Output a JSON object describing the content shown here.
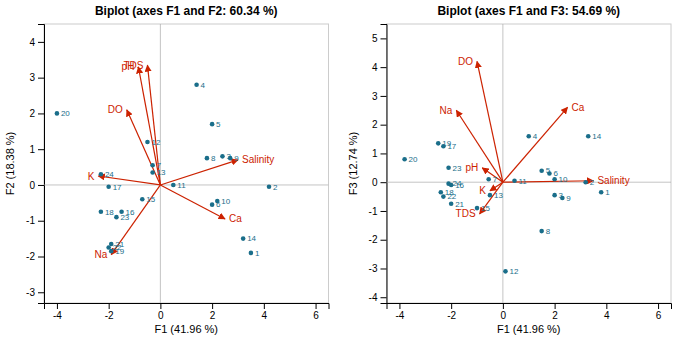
{
  "chart_data": [
    {
      "type": "scatter",
      "title": "Biplot (axes F1 and F2: 60.34 %)",
      "x_label": "F1 (41.96 %)",
      "y_label": "F2 (18.38 %)",
      "xlim": [
        -4.5,
        6.5
      ],
      "ylim": [
        -3.3,
        4.5
      ],
      "xticks": [
        -4,
        -2,
        0,
        2,
        4,
        6
      ],
      "yticks": [
        -3,
        -2,
        -1,
        0,
        1,
        2,
        3,
        4
      ],
      "points": {
        "color": "#1a6e8a",
        "labels": [
          "1",
          "2",
          "3",
          "4",
          "5",
          "6",
          "7",
          "8",
          "9",
          "10",
          "11",
          "12",
          "13",
          "14",
          "15",
          "16",
          "17",
          "18",
          "19",
          "20",
          "21",
          "22",
          "23",
          "24"
        ],
        "x": [
          3.5,
          4.2,
          2.4,
          1.4,
          2.0,
          2.0,
          -0.3,
          1.8,
          2.7,
          2.2,
          0.5,
          -0.5,
          -0.3,
          3.2,
          -0.7,
          -1.5,
          -2.0,
          -2.3,
          -1.9,
          -4.0,
          -1.9,
          -2.0,
          -1.7,
          -2.3
        ],
        "y": [
          -1.9,
          -0.05,
          0.8,
          2.8,
          1.7,
          -0.55,
          0.55,
          0.75,
          0.75,
          -0.45,
          0.0,
          1.2,
          0.35,
          -1.5,
          -0.4,
          -0.75,
          -0.05,
          -0.75,
          -1.85,
          2.0,
          -1.65,
          -1.75,
          -0.9,
          0.3
        ]
      },
      "arrows": {
        "color": "#cc2200",
        "labels": [
          "Salinity",
          "Ca",
          "DO",
          "Na",
          "pH",
          "TDS",
          "K"
        ],
        "x": [
          3.0,
          2.5,
          -1.3,
          -1.9,
          -0.85,
          -0.5,
          -2.4
        ],
        "y": [
          0.7,
          -0.95,
          2.1,
          -1.95,
          3.3,
          3.35,
          0.25
        ]
      }
    },
    {
      "type": "scatter",
      "title": "Biplot (axes F1 and F3: 54.69 %)",
      "x_label": "F1 (41.96 %)",
      "y_label": "F3 (12.74 %)",
      "xlim": [
        -4.5,
        6.5
      ],
      "ylim": [
        -4.2,
        5.5
      ],
      "xticks": [
        -4,
        -2,
        0,
        2,
        4,
        6
      ],
      "yticks": [
        -4,
        -3,
        -2,
        -1,
        0,
        1,
        2,
        3,
        4,
        5
      ],
      "points": {
        "color": "#1a6e8a",
        "labels": [
          "1",
          "2",
          "3",
          "4",
          "5",
          "6",
          "7",
          "8",
          "9",
          "10",
          "11",
          "12",
          "13",
          "14",
          "15",
          "16",
          "17",
          "18",
          "19",
          "20",
          "21",
          "22",
          "23",
          "24"
        ],
        "x": [
          3.8,
          3.2,
          2.0,
          1.0,
          1.5,
          1.8,
          -0.55,
          1.5,
          2.3,
          2.0,
          0.45,
          0.1,
          -0.5,
          3.3,
          -1.0,
          -2.0,
          -2.3,
          -2.4,
          -2.5,
          -3.8,
          -2.0,
          -2.3,
          -2.1,
          -2.1
        ],
        "y": [
          -0.35,
          0.0,
          -0.45,
          1.6,
          0.4,
          0.3,
          0.1,
          -1.7,
          -0.55,
          0.1,
          0.05,
          -3.1,
          -0.45,
          1.6,
          -0.9,
          -0.1,
          1.25,
          -0.35,
          1.35,
          0.8,
          -0.75,
          -0.5,
          0.5,
          -0.05
        ]
      },
      "arrows": {
        "color": "#cc2200",
        "labels": [
          "Salinity",
          "Ca",
          "DO",
          "Na",
          "pH",
          "TDS",
          "K"
        ],
        "x": [
          3.5,
          2.5,
          -1.0,
          -1.8,
          -0.8,
          -0.9,
          -0.5
        ],
        "y": [
          0.05,
          2.6,
          4.2,
          2.5,
          0.5,
          -1.1,
          -0.3
        ]
      }
    }
  ]
}
